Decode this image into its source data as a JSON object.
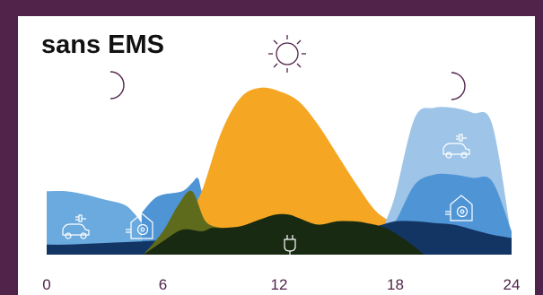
{
  "chart_data": {
    "type": "area",
    "title": "sans EMS",
    "x_ticks": [
      0,
      6,
      12,
      18,
      24
    ],
    "xlim": [
      0,
      24
    ],
    "ylim": [
      0,
      1
    ],
    "grid": false,
    "legend": "none",
    "series": [
      {
        "color": "#6aaade",
        "x": [
          0,
          1,
          2,
          3,
          4,
          4.5,
          4.9
        ],
        "values": [
          0.38,
          0.38,
          0.36,
          0.33,
          0.3,
          0.25,
          0.19
        ]
      },
      {
        "color": "#4f95d6",
        "x": [
          4.9,
          5.5,
          6,
          7,
          7.5,
          7.8,
          8,
          8.5
        ],
        "values": [
          0.25,
          0.33,
          0.36,
          0.38,
          0.43,
          0.46,
          0.38,
          0.15
        ]
      },
      {
        "color": "#f5a623",
        "x": [
          7,
          8,
          9,
          10,
          11,
          12,
          13,
          14,
          15,
          16,
          17,
          18,
          18.5
        ],
        "values": [
          0.15,
          0.38,
          0.73,
          0.94,
          1.0,
          0.98,
          0.92,
          0.78,
          0.6,
          0.42,
          0.26,
          0.18,
          0.12
        ]
      },
      {
        "color": "#9ec4e8",
        "x": [
          17.5,
          18,
          19,
          20,
          21,
          22,
          23,
          24
        ],
        "values": [
          0.2,
          0.36,
          0.82,
          0.88,
          0.88,
          0.85,
          0.78,
          0.1
        ]
      },
      {
        "color": "#4f95d6",
        "x": [
          17.5,
          18,
          19,
          20,
          21,
          22,
          23,
          24
        ],
        "values": [
          0.18,
          0.2,
          0.42,
          0.48,
          0.48,
          0.46,
          0.44,
          0.14
        ]
      },
      {
        "color": "#133564",
        "x": [
          0,
          1,
          3,
          5,
          7,
          8,
          9,
          10,
          11,
          12,
          13,
          14,
          15,
          16,
          17,
          18,
          19,
          20,
          21,
          22,
          23,
          24
        ],
        "values": [
          0.06,
          0.06,
          0.07,
          0.08,
          0.09,
          0.09,
          0.08,
          0.08,
          0.08,
          0.1,
          0.08,
          0.1,
          0.12,
          0.16,
          0.17,
          0.2,
          0.2,
          0.19,
          0.18,
          0.15,
          0.12,
          0.1
        ]
      },
      {
        "color": "#5f6b1c",
        "x": [
          5,
          6,
          6.8,
          7.5,
          8.2,
          9
        ],
        "values": [
          0.0,
          0.14,
          0.3,
          0.38,
          0.2,
          0.16
        ]
      },
      {
        "color": "#182a12",
        "x": [
          5,
          6,
          7,
          8,
          8.5,
          9,
          10,
          11,
          11.8,
          12.5,
          13,
          14,
          15,
          15.8,
          16.5,
          17.5,
          18.5,
          19.5
        ],
        "values": [
          0,
          0.08,
          0.15,
          0.14,
          0.16,
          0.16,
          0.17,
          0.21,
          0.24,
          0.24,
          0.22,
          0.18,
          0.2,
          0.2,
          0.19,
          0.16,
          0.09,
          0
        ]
      }
    ]
  }
}
